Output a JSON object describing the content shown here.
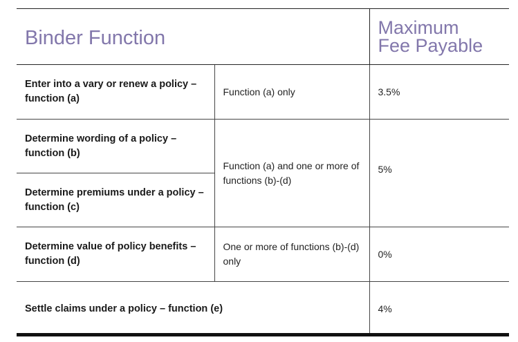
{
  "header": {
    "col1": "Binder Function",
    "col3_line1": "Maximum",
    "col3_line2": "Fee Payable"
  },
  "rows": [
    {
      "function": "Enter into a vary or renew a policy – function (a)",
      "condition": "Function (a) only",
      "fee": "3.5%"
    },
    {
      "function": "Determine wording of a policy – function (b)"
    },
    {
      "function": "Determine premiums under a policy – function (c)"
    },
    {
      "function": "Determine value of policy benefits – function (d)",
      "condition": "One or more of functions (b)-(d) only",
      "fee": "0%"
    },
    {
      "function": "Settle claims under a policy – function (e)",
      "fee": "4%"
    }
  ],
  "merged": {
    "condition_bc": "Function (a) and one or more of functions (b)-(d)",
    "fee_bc": "5%"
  }
}
